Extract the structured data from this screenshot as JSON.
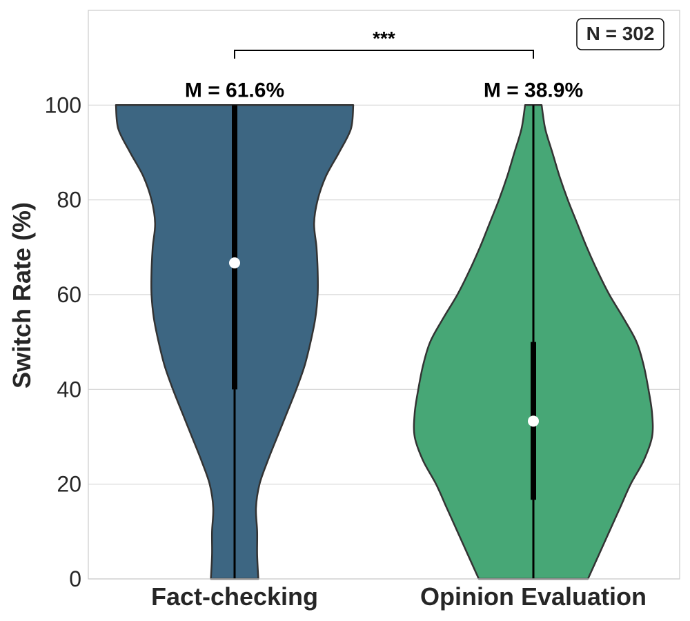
{
  "chart_data": {
    "type": "violin",
    "ylabel": "Switch Rate (%)",
    "ylim": [
      0,
      120
    ],
    "yticks": [
      "0",
      "20",
      "40",
      "60",
      "80",
      "100"
    ],
    "grid": true,
    "categories": [
      "Fact-checking",
      "Opinion Evaluation"
    ],
    "colors": [
      "#3d6682",
      "#47a776"
    ],
    "series": [
      {
        "name": "Fact-checking",
        "mean_label": "M = 61.6%",
        "median": 66.7,
        "q1": 40,
        "q3": 100,
        "min": 0,
        "max": 100,
        "density_profile": [
          [
            0,
            0.2
          ],
          [
            5,
            0.19
          ],
          [
            10,
            0.19
          ],
          [
            15,
            0.18
          ],
          [
            20,
            0.21
          ],
          [
            25,
            0.28
          ],
          [
            30,
            0.36
          ],
          [
            35,
            0.44
          ],
          [
            40,
            0.52
          ],
          [
            45,
            0.59
          ],
          [
            50,
            0.64
          ],
          [
            55,
            0.68
          ],
          [
            60,
            0.7
          ],
          [
            65,
            0.7
          ],
          [
            70,
            0.69
          ],
          [
            75,
            0.67
          ],
          [
            80,
            0.7
          ],
          [
            85,
            0.77
          ],
          [
            90,
            0.88
          ],
          [
            95,
            0.98
          ],
          [
            100,
            1.0
          ]
        ]
      },
      {
        "name": "Opinion Evaluation",
        "mean_label": "M = 38.9%",
        "median": 33.3,
        "q1": 16.7,
        "q3": 50,
        "min": 0,
        "max": 100,
        "density_profile": [
          [
            0,
            0.46
          ],
          [
            5,
            0.55
          ],
          [
            10,
            0.64
          ],
          [
            15,
            0.73
          ],
          [
            20,
            0.82
          ],
          [
            25,
            0.93
          ],
          [
            30,
            1.0
          ],
          [
            35,
            1.0
          ],
          [
            40,
            0.97
          ],
          [
            45,
            0.93
          ],
          [
            50,
            0.87
          ],
          [
            55,
            0.76
          ],
          [
            60,
            0.64
          ],
          [
            65,
            0.54
          ],
          [
            70,
            0.45
          ],
          [
            75,
            0.37
          ],
          [
            80,
            0.29
          ],
          [
            85,
            0.22
          ],
          [
            90,
            0.16
          ],
          [
            95,
            0.1
          ],
          [
            100,
            0.07
          ]
        ]
      }
    ],
    "annotations": {
      "significance": "***",
      "n_label": "N = 302"
    }
  }
}
